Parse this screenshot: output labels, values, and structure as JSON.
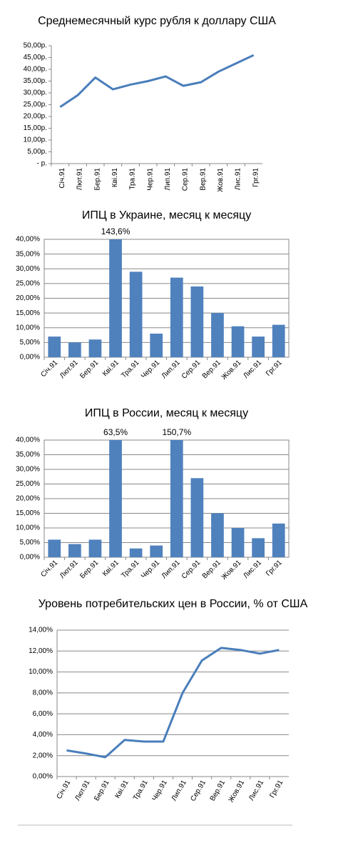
{
  "chart_data": [
    {
      "type": "line",
      "title": "Среднемесячный курс рубля к доллару США",
      "categories": [
        "Січ.91",
        "Лют.91",
        "Бер.91",
        "Кві.91",
        "Тра.91",
        "Чер.91",
        "Лип.91",
        "Сер.91",
        "Вер.91",
        "Жов.91",
        "Лис.91",
        "Грг.91"
      ],
      "values": [
        24,
        29,
        36.5,
        31.5,
        33.5,
        35,
        37,
        33,
        34.5,
        39,
        42.5,
        46
      ],
      "color": "#4a7ebb",
      "grid": false,
      "ylim": [
        0,
        50
      ],
      "yticks": [
        {
          "value": 0,
          "label": "- р."
        },
        {
          "value": 5,
          "label": "5,00р."
        },
        {
          "value": 10,
          "label": "10,00р."
        },
        {
          "value": 15,
          "label": "15,00р."
        },
        {
          "value": 20,
          "label": "20,00р."
        },
        {
          "value": 25,
          "label": "25,00р."
        },
        {
          "value": 30,
          "label": "30,00р."
        },
        {
          "value": 35,
          "label": "35,00р."
        },
        {
          "value": 40,
          "label": "40,00р."
        },
        {
          "value": 45,
          "label": "45,00р."
        },
        {
          "value": 50,
          "label": "50,00р."
        }
      ]
    },
    {
      "type": "bar",
      "title": "ИПЦ в Украине, месяц к месяцу",
      "categories": [
        "Січ.91",
        "Лют.91",
        "Бер.91",
        "Кві.91",
        "Тра.91",
        "Чер.91",
        "Лип.91",
        "Сер.91",
        "Вер.91",
        "Жов.91",
        "Лис.91",
        "Грг.91"
      ],
      "values": [
        7,
        5,
        6,
        143.6,
        29,
        8,
        27,
        24,
        15,
        10.5,
        7,
        11
      ],
      "value_labels": [
        null,
        null,
        null,
        "143,6%",
        null,
        null,
        null,
        null,
        null,
        null,
        null,
        null
      ],
      "color": "#4f81bd",
      "grid": true,
      "ylim": [
        0,
        40
      ],
      "yticks": [
        {
          "value": 0,
          "label": "0,00%"
        },
        {
          "value": 5,
          "label": "5,00%"
        },
        {
          "value": 10,
          "label": "10,00%"
        },
        {
          "value": 15,
          "label": "15,00%"
        },
        {
          "value": 20,
          "label": "20,00%"
        },
        {
          "value": 25,
          "label": "25,00%"
        },
        {
          "value": 30,
          "label": "30,00%"
        },
        {
          "value": 35,
          "label": "35,00%"
        },
        {
          "value": 40,
          "label": "40,00%"
        }
      ]
    },
    {
      "type": "bar",
      "title": "ИПЦ в России, месяц к месяцу",
      "categories": [
        "Січ.91",
        "Лют.91",
        "Бер.91",
        "Кві.91",
        "Тра.91",
        "Чер.91",
        "Лип.91",
        "Сер.91",
        "Вер.91",
        "Жов.91",
        "Лис.91",
        "Грг.91"
      ],
      "values": [
        6,
        4.5,
        6,
        63.5,
        3,
        4,
        150.7,
        27,
        15,
        10,
        6.5,
        11.5
      ],
      "value_labels": [
        null,
        null,
        null,
        "63,5%",
        null,
        null,
        "150,7%",
        null,
        null,
        null,
        null,
        null
      ],
      "color": "#4f81bd",
      "grid": true,
      "ylim": [
        0,
        40
      ],
      "yticks": [
        {
          "value": 0,
          "label": "0,00%"
        },
        {
          "value": 5,
          "label": "5,00%"
        },
        {
          "value": 10,
          "label": "10,00%"
        },
        {
          "value": 15,
          "label": "15,00%"
        },
        {
          "value": 20,
          "label": "20,00%"
        },
        {
          "value": 25,
          "label": "25,00%"
        },
        {
          "value": 30,
          "label": "30,00%"
        },
        {
          "value": 35,
          "label": "35,00%"
        },
        {
          "value": 40,
          "label": "40,00%"
        }
      ]
    },
    {
      "type": "line",
      "title": "Уровень потребительских цен в России, % от США",
      "categories": [
        "Січ.91",
        "Лют.91",
        "Бер.91",
        "Кві.91",
        "Тра.91",
        "Чер.91",
        "Лип.91",
        "Сер.91",
        "Вер.91",
        "Жов.91",
        "Лис.91",
        "Грг.91"
      ],
      "values": [
        2.5,
        2.2,
        1.85,
        3.5,
        3.35,
        3.35,
        8,
        11.1,
        12.3,
        12.1,
        11.75,
        12.1
      ],
      "color": "#4a7ebb",
      "grid": true,
      "ylim": [
        0,
        14
      ],
      "yticks": [
        {
          "value": 0,
          "label": "0,00%"
        },
        {
          "value": 2,
          "label": "2,00%"
        },
        {
          "value": 4,
          "label": "4,00%"
        },
        {
          "value": 6,
          "label": "6,00%"
        },
        {
          "value": 8,
          "label": "8,00%"
        },
        {
          "value": 10,
          "label": "10,00%"
        },
        {
          "value": 12,
          "label": "12,00%"
        },
        {
          "value": 14,
          "label": "14,00%"
        }
      ]
    }
  ]
}
